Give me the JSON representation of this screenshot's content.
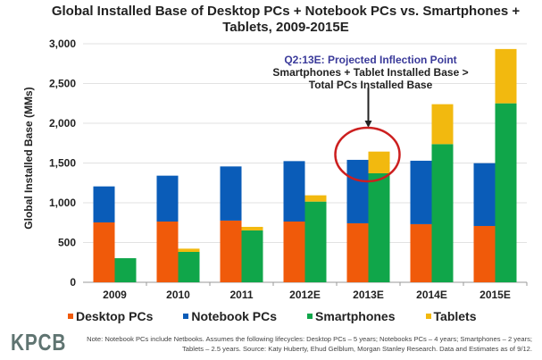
{
  "chart_data": {
    "type": "bar",
    "stacked": true,
    "title": "Global Installed Base of Desktop PCs + Notebook PCs vs. Smartphones + Tablets, 2009-2015E",
    "ylabel": "Global Installed Base (MMs)",
    "xlabel": "",
    "ylim": [
      0,
      3000
    ],
    "yticks": [
      "0",
      "500",
      "1,000",
      "1,500",
      "2,000",
      "2,500",
      "3,000"
    ],
    "categories": [
      "2009",
      "2010",
      "2011",
      "2012E",
      "2013E",
      "2014E",
      "2015E"
    ],
    "stacks": [
      {
        "stack": "PCs",
        "series": [
          {
            "name": "Desktop PCs",
            "color": "#f05a0a",
            "values": [
              753,
              764,
              776,
              764,
              742,
              731,
              708
            ]
          },
          {
            "name": "Notebook PCs",
            "color": "#0a5cb8",
            "values": [
              453,
              577,
              681,
              760,
              798,
              798,
              790
            ]
          }
        ]
      },
      {
        "stack": "Mobile",
        "series": [
          {
            "name": "Smartphones",
            "color": "#10a64a",
            "values": [
              303,
              382,
              652,
              1015,
              1371,
              1738,
              2251
            ]
          },
          {
            "name": "Tablets",
            "color": "#f2b90f",
            "values": [
              0,
              41,
              45,
              79,
              273,
              502,
              683
            ]
          }
        ]
      }
    ],
    "grid": true,
    "legend": "bottom",
    "annotation": {
      "category": "2013E",
      "line1": "Q2:13E: Projected Inflection Point",
      "line2": "Smartphones + Tablet Installed Base >",
      "line3": "Total PCs Installed Base",
      "highlight_color": "#cc1f1f"
    }
  },
  "logo": "KPCB",
  "note": "Note: Notebook PCs include Netbooks. Assumes the following lifecycles: Desktop PCs – 5 years; Notebooks PCs – 4 years; Smartphones – 2 years; Tablets – 2.5 years. Source: Katy Huberty, Ehud Gelblum, Morgan Stanley Research. Data and Estimates as of 9/12."
}
